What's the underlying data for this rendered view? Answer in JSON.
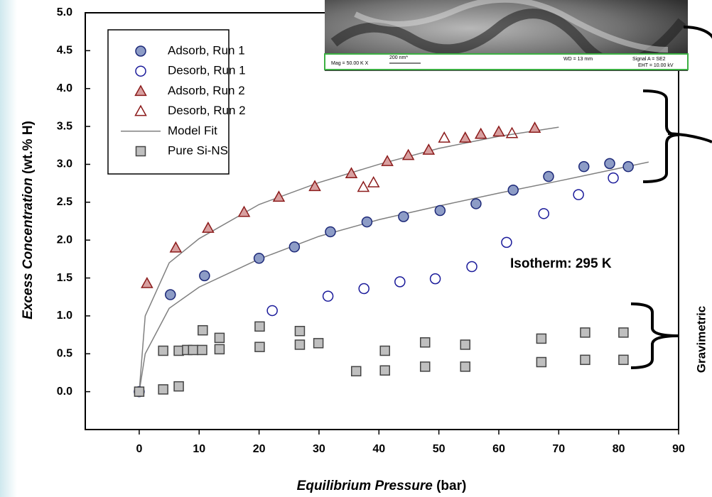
{
  "chart_data": {
    "type": "scatter",
    "xlabel": {
      "italic": "Equilibrium Pressure",
      "normal": "(bar)"
    },
    "ylabel": {
      "italic": "Excess Concentration",
      "normal": "(wt.% H)"
    },
    "annotation": "Isotherm:  295 K",
    "side_label": "Gravimetric",
    "xlim": [
      -9,
      90
    ],
    "ylim": [
      -0.5,
      5.0
    ],
    "xticks": [
      0,
      10,
      20,
      30,
      40,
      50,
      60,
      70,
      80,
      90
    ],
    "yticks": [
      {
        "value": 0,
        "label": "0.0"
      },
      {
        "value": 0.5,
        "label": "0.5"
      },
      {
        "value": 1,
        "label": "1.0"
      },
      {
        "value": 1.5,
        "label": "1.5"
      },
      {
        "value": 2,
        "label": "2.0"
      },
      {
        "value": 2.5,
        "label": "2.5"
      },
      {
        "value": 3,
        "label": "3.0"
      },
      {
        "value": 3.5,
        "label": "3.5"
      },
      {
        "value": 4,
        "label": "4.0"
      },
      {
        "value": 4.5,
        "label": "4.5"
      },
      {
        "value": 5,
        "label": "5.0"
      }
    ],
    "grid": false,
    "legend": "upper-left",
    "series": [
      {
        "name": "Adsorb, Run 1",
        "marker": "circle",
        "filled": true,
        "color": "#1c2878",
        "fill": "#8d9cc6",
        "x": [
          0,
          5.2,
          10.9,
          20.0,
          25.9,
          31.9,
          38.0,
          44.1,
          50.2,
          56.2,
          62.4,
          68.3,
          74.2,
          78.5,
          81.6
        ],
        "values": [
          0,
          1.28,
          1.53,
          1.76,
          1.91,
          2.11,
          2.24,
          2.31,
          2.39,
          2.48,
          2.66,
          2.84,
          2.97,
          3.01,
          2.97
        ]
      },
      {
        "name": "Desorb, Run 1",
        "marker": "circle",
        "filled": false,
        "color": "#1a1a9a",
        "fill": "#ffffff",
        "x": [
          22.2,
          31.5,
          37.5,
          43.5,
          49.4,
          55.5,
          61.3,
          67.5,
          73.3,
          79.1
        ],
        "values": [
          1.07,
          1.26,
          1.36,
          1.45,
          1.49,
          1.65,
          1.97,
          2.35,
          2.6,
          2.82
        ]
      },
      {
        "name": "Adsorb, Run 2",
        "marker": "triangle",
        "filled": true,
        "color": "#8b1a1a",
        "fill": "#d8a0a0",
        "x": [
          1.3,
          6.1,
          11.5,
          17.5,
          23.3,
          29.3,
          35.4,
          41.4,
          44.9,
          48.3,
          54.4,
          57.0,
          60.0,
          66.0
        ],
        "values": [
          1.43,
          1.9,
          2.16,
          2.37,
          2.57,
          2.71,
          2.88,
          3.04,
          3.12,
          3.19,
          3.35,
          3.4,
          3.43,
          3.48
        ]
      },
      {
        "name": "Desorb, Run 2",
        "marker": "triangle",
        "filled": false,
        "color": "#8b1a1a",
        "fill": "#ffffff",
        "x": [
          37.4,
          39.1,
          50.9,
          62.2
        ],
        "values": [
          2.7,
          2.76,
          3.35,
          3.41
        ]
      },
      {
        "name": "Model Fit",
        "marker": "line",
        "filled": false,
        "color": "#808080",
        "fill": "none",
        "x": [
          0,
          1,
          5,
          10,
          20,
          30,
          40,
          50,
          60,
          70,
          null,
          0,
          1,
          5,
          10,
          20,
          30,
          40,
          50,
          60,
          70,
          85
        ],
        "values": [
          0,
          1.0,
          1.7,
          2.02,
          2.47,
          2.76,
          3.0,
          3.21,
          3.37,
          3.49,
          null,
          0,
          0.5,
          1.1,
          1.38,
          1.75,
          2.05,
          2.27,
          2.45,
          2.62,
          2.78,
          3.03
        ]
      },
      {
        "name": "Pure Si-NS",
        "marker": "square",
        "filled": true,
        "color": "#444444",
        "fill": "#bfbfbf",
        "x": [
          0,
          4.0,
          6.6,
          4.0,
          6.6,
          8.0,
          9.0,
          10.5,
          10.6,
          13.4,
          13.4,
          20.1,
          20.1,
          26.8,
          26.8,
          29.9,
          36.2,
          41.0,
          41.0,
          47.7,
          47.7,
          54.4,
          54.4,
          67.1,
          67.1,
          74.4,
          74.4,
          80.8,
          80.8
        ],
        "values": [
          0,
          0.03,
          0.07,
          0.54,
          0.54,
          0.55,
          0.55,
          0.55,
          0.81,
          0.56,
          0.71,
          0.59,
          0.86,
          0.62,
          0.8,
          0.64,
          0.27,
          0.28,
          0.54,
          0.33,
          0.65,
          0.33,
          0.62,
          0.39,
          0.7,
          0.42,
          0.78,
          0.42,
          0.78
        ]
      }
    ]
  },
  "inset": {
    "mag": "Mag = 50.00 K X",
    "scale": "200 nm*",
    "wd": "WD =  13 mm",
    "signal": "Signal A = SE2",
    "eht": "EHT = 10.00 kV"
  }
}
